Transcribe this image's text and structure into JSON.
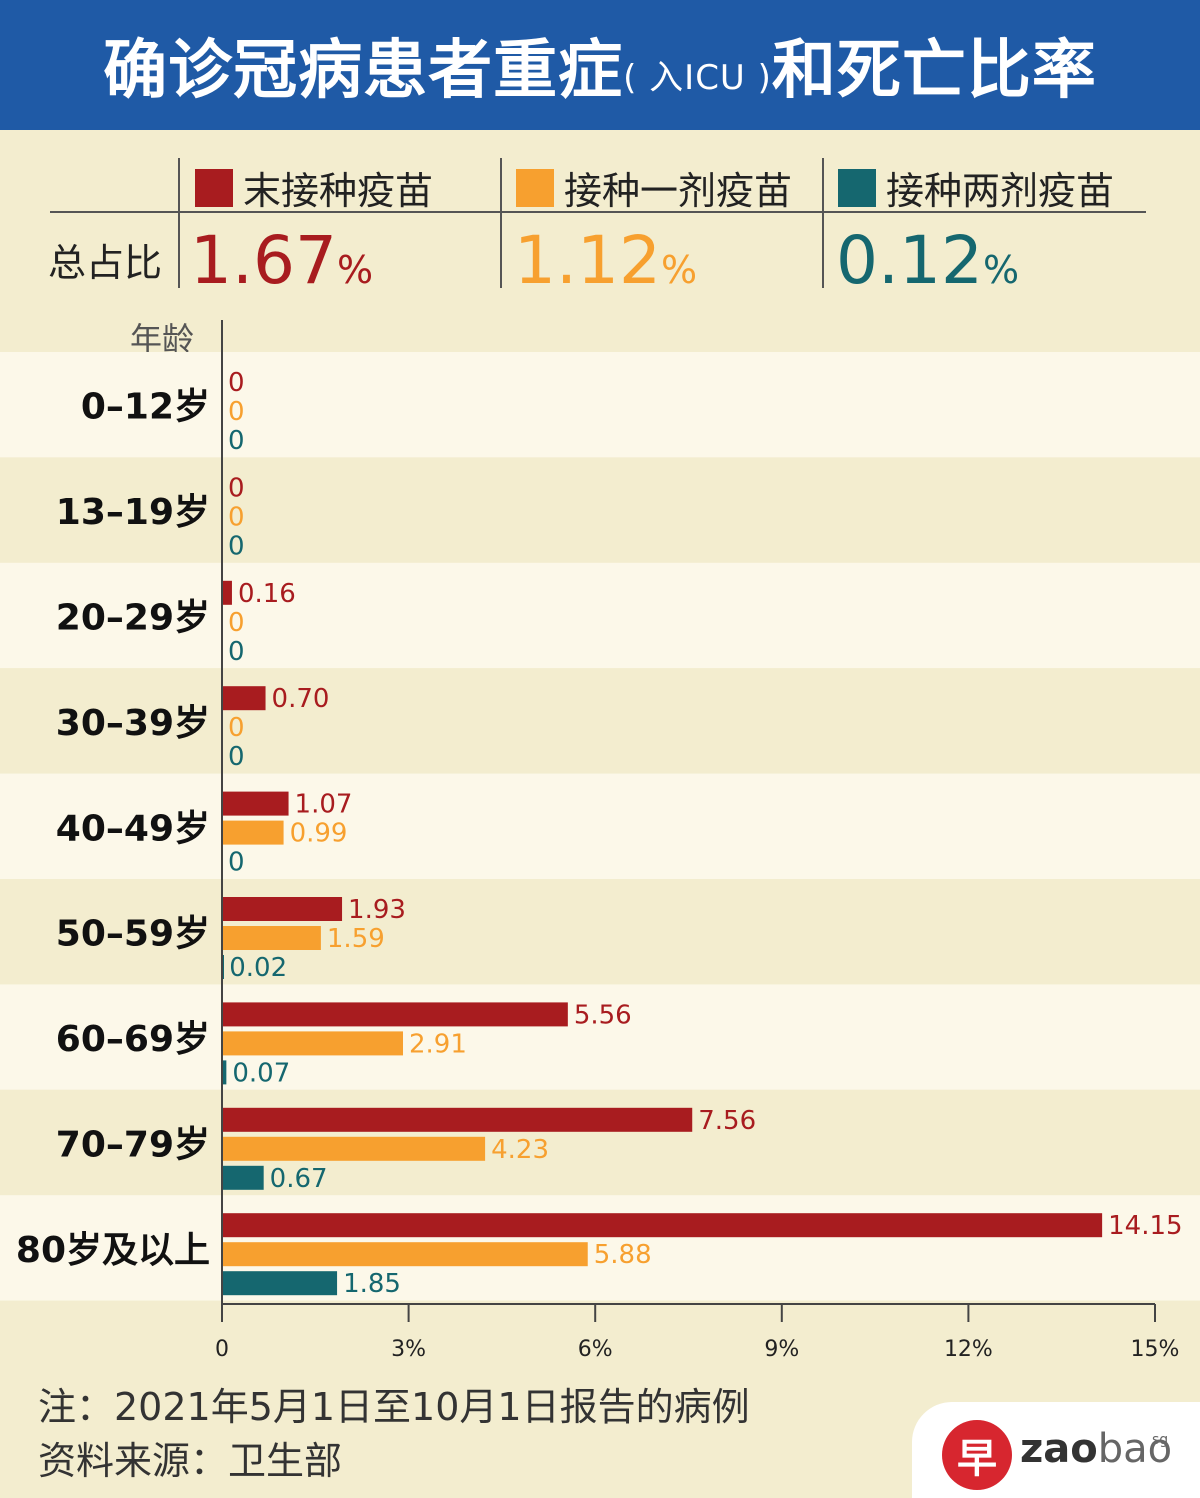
{
  "header": {
    "title_main": "确诊冠病患者重症",
    "title_paren": "( 入ICU )",
    "title_tail": "和死亡比率",
    "bg_color": "#1f5aa6"
  },
  "legend": [
    {
      "label": "末接种疫苗",
      "color": "#a81c1f"
    },
    {
      "label": "接种一剂疫苗",
      "color": "#f7a02f"
    },
    {
      "label": "接种两剂疫苗",
      "color": "#15676f"
    }
  ],
  "totals": {
    "label": "总占比",
    "values": [
      "1.67",
      "1.12",
      "0.12"
    ],
    "unit": "%"
  },
  "chart_data": {
    "type": "bar",
    "orientation": "horizontal",
    "ylabel": "年龄",
    "categories": [
      "0–12岁",
      "13–19岁",
      "20–29岁",
      "30–39岁",
      "40–49岁",
      "50–59岁",
      "60–69岁",
      "70–79岁",
      "80岁及以上"
    ],
    "series": [
      {
        "name": "末接种疫苗",
        "color": "#a81c1f",
        "values": [
          0,
          0,
          0.16,
          0.7,
          1.07,
          1.93,
          5.56,
          7.56,
          14.15
        ],
        "labels": [
          "0",
          "0",
          "0.16",
          "0.70",
          "1.07",
          "1.93",
          "5.56",
          "7.56",
          "14.15"
        ]
      },
      {
        "name": "接种一剂疫苗",
        "color": "#f7a02f",
        "values": [
          0,
          0,
          0,
          0,
          0.99,
          1.59,
          2.91,
          4.23,
          5.88
        ],
        "labels": [
          "0",
          "0",
          "0",
          "0",
          "0.99",
          "1.59",
          "2.91",
          "4.23",
          "5.88"
        ]
      },
      {
        "name": "接种两剂疫苗",
        "color": "#15676f",
        "values": [
          0,
          0,
          0,
          0,
          0,
          0.02,
          0.07,
          0.67,
          1.85
        ],
        "labels": [
          "0",
          "0",
          "0",
          "0",
          "0",
          "0.02",
          "0.07",
          "0.67",
          "1.85"
        ]
      }
    ],
    "xlim": [
      0,
      15
    ],
    "xticks": [
      "0",
      "3%",
      "6%",
      "9%",
      "12%",
      "15%"
    ],
    "grid": false,
    "legend_position": "top"
  },
  "footer": {
    "note": "注：2021年5月1日至10月1日报告的病例",
    "source": "资料来源：卫生部"
  },
  "logo": {
    "glyph": "早",
    "text_bold": "zao",
    "text_light": "bao",
    "suffix": "sg"
  }
}
